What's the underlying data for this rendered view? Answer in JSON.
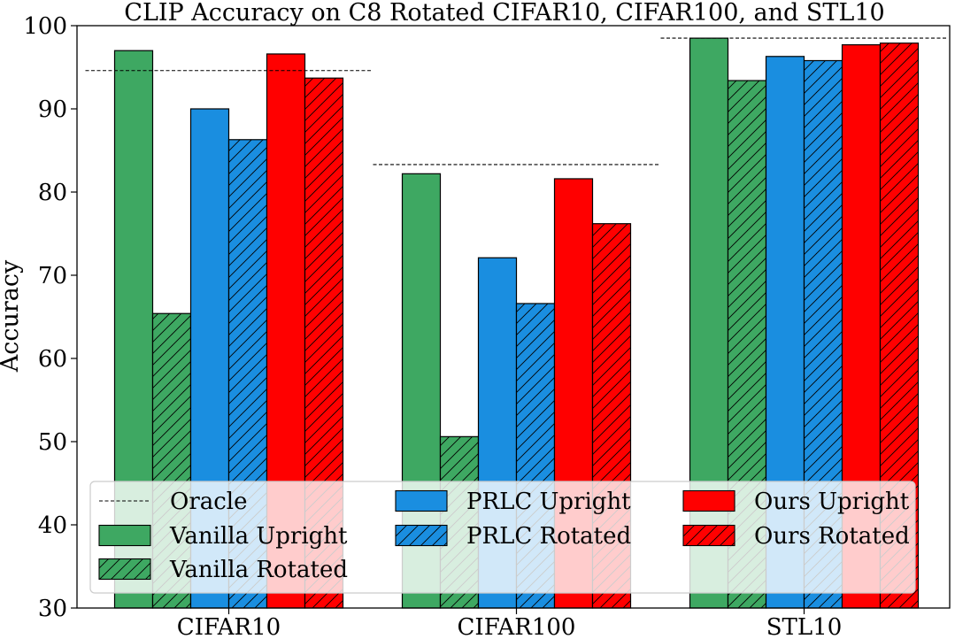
{
  "chart_data": {
    "type": "bar",
    "title": "CLIP Accuracy on C8 Rotated CIFAR10, CIFAR100, and STL10",
    "xlabel": "",
    "ylabel": "Accuracy",
    "ylim": [
      30,
      100
    ],
    "yticks": [
      30,
      40,
      50,
      60,
      70,
      80,
      90,
      100
    ],
    "grid": false,
    "categories": [
      "CIFAR10",
      "CIFAR100",
      "STL10"
    ],
    "series": [
      {
        "name": "Vanilla Upright",
        "color": "#3ea862",
        "hatch": false,
        "values": [
          97.0,
          82.2,
          98.5
        ]
      },
      {
        "name": "Vanilla Rotated",
        "color": "#3ea862",
        "hatch": true,
        "values": [
          65.4,
          50.6,
          93.4
        ]
      },
      {
        "name": "PRLC Upright",
        "color": "#1a8ee0",
        "hatch": false,
        "values": [
          90.0,
          72.1,
          96.3
        ]
      },
      {
        "name": "PRLC Rotated",
        "color": "#1a8ee0",
        "hatch": true,
        "values": [
          86.3,
          66.6,
          95.8
        ]
      },
      {
        "name": "Ours Upright",
        "color": "#ff0000",
        "hatch": false,
        "values": [
          96.6,
          81.6,
          97.7
        ]
      },
      {
        "name": "Ours Rotated",
        "color": "#ff0000",
        "hatch": true,
        "values": [
          93.7,
          76.2,
          97.9
        ]
      }
    ],
    "oracle": {
      "name": "Oracle",
      "values": [
        94.6,
        83.3,
        98.5
      ]
    },
    "legend": {
      "placement": "bottom",
      "columns": [
        [
          "Oracle",
          "Vanilla Upright",
          "Vanilla Rotated"
        ],
        [
          "PRLC Upright",
          "PRLC Rotated"
        ],
        [
          "Ours Upright",
          "Ours Rotated"
        ]
      ]
    }
  }
}
